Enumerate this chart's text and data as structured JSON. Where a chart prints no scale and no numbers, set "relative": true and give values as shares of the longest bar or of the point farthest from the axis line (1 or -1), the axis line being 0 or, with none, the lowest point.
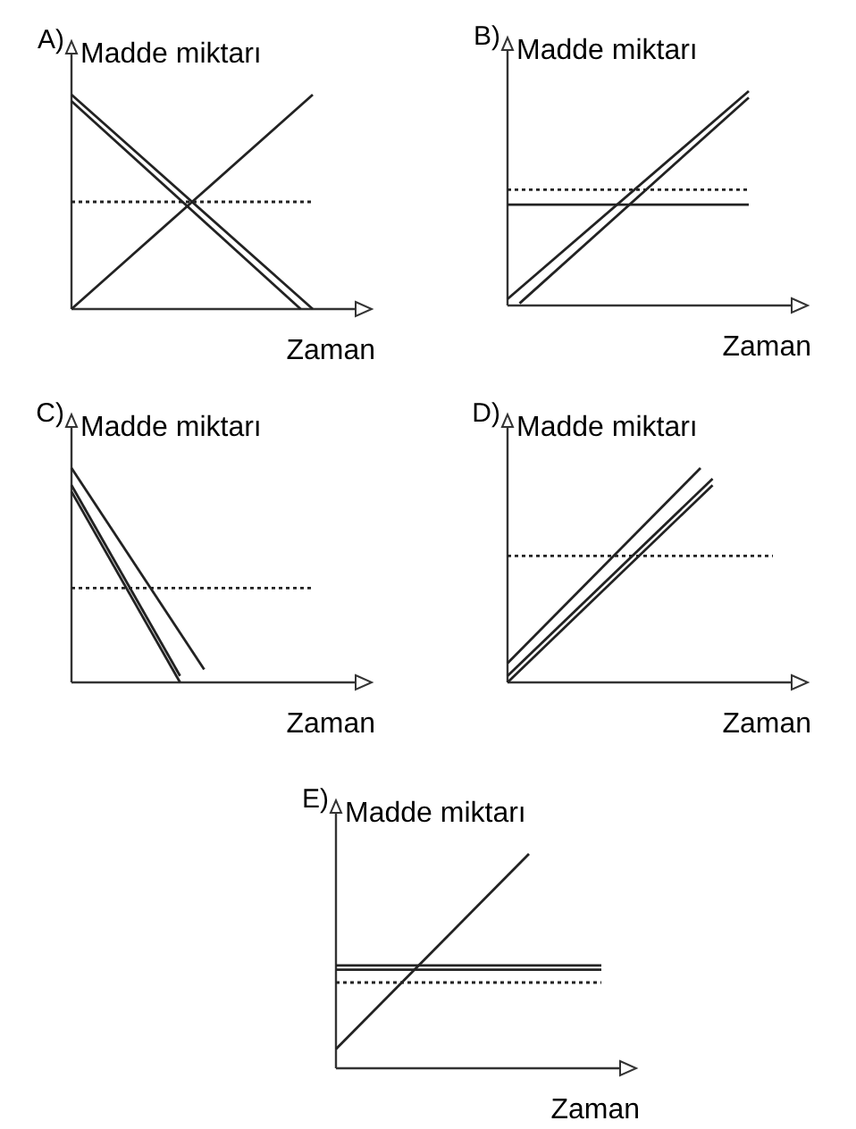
{
  "chart_data": [
    {
      "type": "line",
      "title": "A)",
      "ylabel": "Madde miktarı",
      "xlabel": "Zaman",
      "relative": true,
      "categories": [
        null,
        null,
        null,
        null,
        null,
        null,
        null,
        null,
        null,
        null,
        null,
        null,
        null,
        null,
        null,
        null,
        null,
        null,
        null,
        null,
        null
      ],
      "series": [
        {
          "color": "#222222",
          "line_style": "solid",
          "values": [
            1,
            null,
            null,
            null,
            null,
            null,
            null,
            null,
            null,
            null,
            null,
            null,
            null,
            null,
            null,
            null,
            null,
            null,
            null,
            null,
            0
          ]
        },
        {
          "color": "#222222",
          "line_style": "solid",
          "values": [
            0.97,
            null,
            null,
            null,
            null,
            null,
            null,
            null,
            null,
            null,
            null,
            null,
            null,
            null,
            null,
            null,
            null,
            null,
            null,
            0,
            null
          ]
        },
        {
          "color": "#222222",
          "line_style": "solid",
          "values": [
            0,
            null,
            null,
            null,
            null,
            null,
            null,
            null,
            null,
            null,
            null,
            null,
            null,
            null,
            null,
            null,
            null,
            null,
            null,
            null,
            1
          ]
        },
        {
          "color": "#222222",
          "line_style": "dotted",
          "values": [
            0.5,
            null,
            null,
            null,
            null,
            null,
            null,
            null,
            null,
            null,
            null,
            null,
            null,
            null,
            null,
            null,
            null,
            null,
            null,
            null,
            0.5
          ]
        }
      ]
    },
    {
      "type": "line",
      "title": "B)",
      "ylabel": "Madde miktarı",
      "xlabel": "Zaman",
      "relative": true,
      "categories": [
        null,
        null,
        null,
        null,
        null,
        null,
        null,
        null,
        null,
        null,
        null,
        null,
        null,
        null,
        null,
        null,
        null,
        null,
        null,
        null,
        null
      ],
      "series": [
        {
          "color": "#222222",
          "line_style": "solid",
          "values": [
            0.03,
            null,
            null,
            null,
            null,
            null,
            null,
            null,
            null,
            null,
            null,
            null,
            null,
            null,
            null,
            null,
            null,
            null,
            null,
            null,
            1
          ]
        },
        {
          "color": "#222222",
          "line_style": "solid",
          "values": [
            null,
            0.01,
            null,
            null,
            null,
            null,
            null,
            null,
            null,
            null,
            null,
            null,
            null,
            null,
            null,
            null,
            null,
            null,
            null,
            null,
            0.97
          ]
        },
        {
          "color": "#222222",
          "line_style": "solid",
          "values": [
            0.47,
            null,
            null,
            null,
            null,
            null,
            null,
            null,
            null,
            null,
            null,
            null,
            null,
            null,
            null,
            null,
            null,
            null,
            null,
            null,
            0.47
          ]
        },
        {
          "color": "#222222",
          "line_style": "dotted",
          "values": [
            0.54,
            null,
            null,
            null,
            null,
            null,
            null,
            null,
            null,
            null,
            null,
            null,
            null,
            null,
            null,
            null,
            null,
            null,
            null,
            null,
            0.54
          ]
        }
      ]
    },
    {
      "type": "line",
      "title": "C)",
      "ylabel": "Madde miktarı",
      "xlabel": "Zaman",
      "relative": true,
      "categories": [
        null,
        null,
        null,
        null,
        null,
        null,
        null,
        null,
        null,
        null,
        null,
        null,
        null,
        null,
        null,
        null,
        null,
        null,
        null,
        null,
        null
      ],
      "series": [
        {
          "color": "#222222",
          "line_style": "solid",
          "values": [
            1,
            null,
            null,
            null,
            null,
            null,
            null,
            null,
            null,
            null,
            null,
            0.06,
            null,
            null,
            null,
            null,
            null,
            null,
            null,
            null,
            null
          ]
        },
        {
          "color": "#222222",
          "line_style": "solid",
          "values": [
            0.89,
            null,
            null,
            null,
            null,
            null,
            null,
            null,
            null,
            0,
            null,
            null,
            null,
            null,
            null,
            null,
            null,
            null,
            null,
            null,
            null
          ]
        },
        {
          "color": "#222222",
          "line_style": "solid",
          "values": [
            0.92,
            null,
            null,
            null,
            null,
            null,
            null,
            null,
            null,
            0.03,
            null,
            null,
            null,
            null,
            null,
            null,
            null,
            null,
            null,
            null,
            null
          ]
        },
        {
          "color": "#222222",
          "line_style": "dotted",
          "values": [
            0.44,
            null,
            null,
            null,
            null,
            null,
            null,
            null,
            null,
            null,
            null,
            null,
            null,
            null,
            null,
            null,
            null,
            null,
            null,
            null,
            0.44
          ]
        }
      ]
    },
    {
      "type": "line",
      "title": "D)",
      "ylabel": "Madde miktarı",
      "xlabel": "Zaman",
      "relative": true,
      "categories": [
        null,
        null,
        null,
        null,
        null,
        null,
        null,
        null,
        null,
        null,
        null,
        null,
        null,
        null,
        null,
        null,
        null,
        null,
        null,
        null,
        null,
        null,
        null
      ],
      "series": [
        {
          "color": "#222222",
          "line_style": "solid",
          "values": [
            0.09,
            null,
            null,
            null,
            null,
            null,
            null,
            null,
            null,
            null,
            null,
            null,
            null,
            null,
            null,
            null,
            1,
            null,
            null,
            null,
            null,
            null,
            null
          ]
        },
        {
          "color": "#222222",
          "line_style": "solid",
          "values": [
            0.03,
            null,
            null,
            null,
            null,
            null,
            null,
            null,
            null,
            null,
            null,
            null,
            null,
            null,
            null,
            null,
            null,
            0.95,
            null,
            null,
            null,
            null,
            null
          ]
        },
        {
          "color": "#222222",
          "line_style": "solid",
          "values": [
            0,
            null,
            null,
            null,
            null,
            null,
            null,
            null,
            null,
            null,
            null,
            null,
            null,
            null,
            null,
            null,
            null,
            0.92,
            null,
            null,
            null,
            null,
            null
          ]
        },
        {
          "color": "#222222",
          "line_style": "dotted",
          "values": [
            0.59,
            null,
            null,
            null,
            null,
            null,
            null,
            null,
            null,
            null,
            null,
            null,
            null,
            null,
            null,
            null,
            null,
            null,
            null,
            null,
            null,
            null,
            0.59
          ]
        }
      ]
    },
    {
      "type": "line",
      "title": "E)",
      "ylabel": "Madde miktarı",
      "xlabel": "Zaman",
      "relative": true,
      "categories": [
        null,
        null,
        null,
        null,
        null,
        null,
        null,
        null,
        null,
        null,
        null,
        null,
        null,
        null,
        null,
        null,
        null,
        null,
        null,
        null,
        null,
        null,
        null
      ],
      "series": [
        {
          "color": "#222222",
          "line_style": "solid",
          "values": [
            0.09,
            null,
            null,
            null,
            null,
            null,
            null,
            null,
            null,
            null,
            null,
            null,
            null,
            null,
            null,
            null,
            1,
            null,
            null,
            null,
            null,
            null,
            null
          ]
        },
        {
          "color": "#222222",
          "line_style": "solid",
          "values": [
            0.48,
            null,
            null,
            null,
            null,
            null,
            null,
            null,
            null,
            null,
            null,
            null,
            null,
            null,
            null,
            null,
            null,
            null,
            null,
            null,
            null,
            null,
            0.48
          ]
        },
        {
          "color": "#222222",
          "line_style": "solid",
          "values": [
            0.46,
            null,
            null,
            null,
            null,
            null,
            null,
            null,
            null,
            null,
            null,
            null,
            null,
            null,
            null,
            null,
            null,
            null,
            null,
            null,
            null,
            null,
            0.46
          ]
        },
        {
          "color": "#222222",
          "line_style": "dotted",
          "values": [
            0.4,
            null,
            null,
            null,
            null,
            null,
            null,
            null,
            null,
            null,
            null,
            null,
            null,
            null,
            null,
            null,
            null,
            null,
            null,
            null,
            null,
            null,
            0.4
          ]
        }
      ]
    }
  ]
}
